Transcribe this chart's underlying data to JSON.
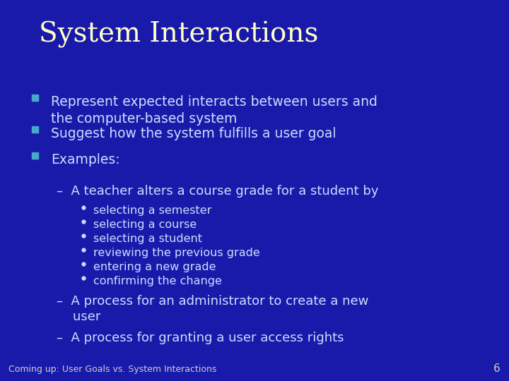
{
  "title": "System Interactions",
  "title_color": "#FFFFCC",
  "title_fontsize": 28,
  "background_color": "#1a1aaa",
  "text_color": "#CCDDFF",
  "bullet_color": "#44AACC",
  "footer": "Coming up: User Goals vs. System Interactions",
  "footer_color": "#CCCCCC",
  "page_number": "6",
  "page_number_color": "#CCCCCC",
  "bullet_items": [
    "Represent expected interacts between users and\nthe computer-based system",
    "Suggest how the system fulfills a user goal",
    "Examples:"
  ],
  "sub1": "–  A teacher alters a course grade for a student by",
  "sub_sub_items": [
    "selecting a semester",
    "selecting a course",
    "selecting a student",
    "reviewing the previous grade",
    "entering a new grade",
    "confirming the change"
  ],
  "sub2": "–  A process for an administrator to create a new\n    user",
  "sub3": "–  A process for granting a user access rights"
}
